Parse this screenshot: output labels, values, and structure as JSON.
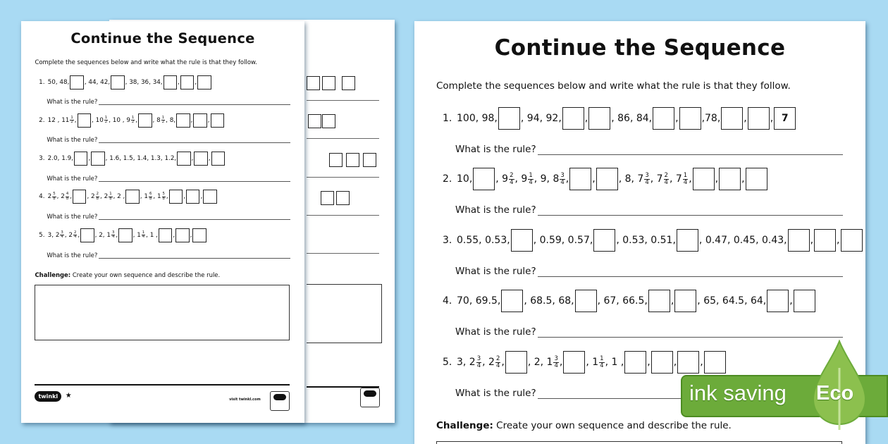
{
  "colors": {
    "background": "#a9daf3",
    "eco_green": "#6cab3a"
  },
  "left_sheet": {
    "title": "Continue the Sequence",
    "instructions": "Complete the sequences below and write what the rule is that they follow.",
    "rule_prompt": "What is the rule?",
    "challenge_label": "Challenge:",
    "challenge_text": "Create your own sequence and describe the rule.",
    "rows": [
      {
        "num": "1.",
        "tokens": [
          "50, 48,",
          {
            "box": ""
          },
          ", 44, 42,",
          {
            "box": ""
          },
          ", 38, 36, 34,",
          {
            "box": ""
          },
          ",",
          {
            "box": ""
          },
          ",",
          {
            "box": ""
          }
        ]
      },
      {
        "num": "2.",
        "tokens": [
          "12 , 11",
          {
            "n": "1",
            "d": "2"
          },
          ",",
          {
            "box": ""
          },
          ", 10",
          {
            "n": "1",
            "d": "2"
          },
          ", 10 , 9",
          {
            "n": "1",
            "d": "2"
          },
          ",",
          {
            "box": ""
          },
          ", 8",
          {
            "n": "1",
            "d": "2"
          },
          ", 8,",
          {
            "box": ""
          },
          ",",
          {
            "box": ""
          },
          ",",
          {
            "box": ""
          }
        ]
      },
      {
        "num": "3.",
        "tokens": [
          "2.0, 1.9,",
          {
            "box": ""
          },
          ",",
          {
            "box": ""
          },
          ", 1.6, 1.5, 1.4, 1.3, 1.2,",
          {
            "box": ""
          },
          ",",
          {
            "box": ""
          },
          ",",
          {
            "box": ""
          }
        ]
      },
      {
        "num": "4.",
        "tokens": [
          "2",
          {
            "n": "5",
            "d": "8"
          },
          ", 2",
          {
            "n": "4",
            "d": "8"
          },
          ",",
          {
            "box": ""
          },
          ", 2",
          {
            "n": "2",
            "d": "8"
          },
          ", 2",
          {
            "n": "1",
            "d": "8"
          },
          ", 2 ,",
          {
            "box": ""
          },
          ", 1",
          {
            "n": "6",
            "d": "8"
          },
          ", 1",
          {
            "n": "5",
            "d": "8"
          },
          ",",
          {
            "box": ""
          },
          ",",
          {
            "box": ""
          },
          ",",
          {
            "box": ""
          }
        ]
      },
      {
        "num": "5.",
        "tokens": [
          "3, 2",
          {
            "n": "3",
            "d": "4"
          },
          ", 2",
          {
            "n": "2",
            "d": "4"
          },
          ",",
          {
            "box": ""
          },
          ", 2, 1",
          {
            "n": "3",
            "d": "4"
          },
          ",",
          {
            "box": ""
          },
          ", 1",
          {
            "n": "1",
            "d": "4"
          },
          ", 1 ,",
          {
            "box": ""
          },
          ",",
          {
            "box": ""
          },
          ",",
          {
            "box": ""
          }
        ]
      }
    ]
  },
  "right_sheet": {
    "title": "Continue the Sequence",
    "instructions": "Complete the sequences below and write what the rule is that they follow.",
    "rule_prompt": "What is the rule?",
    "challenge_label": "Challenge:",
    "challenge_text": "Create your own sequence and describe the rule.",
    "rows": [
      {
        "num": "1.",
        "tokens": [
          "100, 98,",
          {
            "box": ""
          },
          ", 94, 92,",
          {
            "box": ""
          },
          ",",
          {
            "box": ""
          },
          ", 86, 84,",
          {
            "box": ""
          },
          ",",
          {
            "box": ""
          },
          ",78,",
          {
            "box": ""
          },
          ",",
          {
            "box": ""
          },
          ",",
          {
            "box": "7"
          }
        ]
      },
      {
        "num": "2.",
        "tokens": [
          "10,",
          {
            "box": ""
          },
          ", 9",
          {
            "n": "2",
            "d": "4"
          },
          ", 9",
          {
            "n": "1",
            "d": "4"
          },
          ", 9, 8",
          {
            "n": "3",
            "d": "4"
          },
          ",",
          {
            "box": ""
          },
          ",",
          {
            "box": ""
          },
          ", 8, 7",
          {
            "n": "3",
            "d": "4"
          },
          ", 7",
          {
            "n": "2",
            "d": "4"
          },
          ", 7",
          {
            "n": "1",
            "d": "4"
          },
          ",",
          {
            "box": ""
          },
          ",",
          {
            "box": ""
          },
          ",",
          {
            "box": ""
          }
        ]
      },
      {
        "num": "3.",
        "tokens": [
          "0.55, 0.53,",
          {
            "box": ""
          },
          ", 0.59, 0.57,",
          {
            "box": ""
          },
          ", 0.53, 0.51,",
          {
            "box": ""
          },
          ", 0.47, 0.45, 0.43,",
          {
            "box": ""
          },
          ",",
          {
            "box": ""
          },
          ",",
          {
            "box": ""
          }
        ]
      },
      {
        "num": "4.",
        "tokens": [
          "70, 69.5,",
          {
            "box": ""
          },
          ", 68.5, 68,",
          {
            "box": ""
          },
          ", 67, 66.5,",
          {
            "box": ""
          },
          ",",
          {
            "box": ""
          },
          ", 65, 64.5, 64,",
          {
            "box": ""
          },
          ",",
          {
            "box": ""
          }
        ]
      },
      {
        "num": "5.",
        "tokens": [
          "3, 2",
          {
            "n": "3",
            "d": "4"
          },
          ", 2",
          {
            "n": "2",
            "d": "4"
          },
          ",",
          {
            "box": ""
          },
          ", 2, 1",
          {
            "n": "3",
            "d": "4"
          },
          ",",
          {
            "box": ""
          },
          ", 1",
          {
            "n": "1",
            "d": "4"
          },
          ", 1 ,",
          {
            "box": ""
          },
          ",",
          {
            "box": ""
          },
          ",",
          {
            "box": ""
          },
          ",",
          {
            "box": ""
          }
        ]
      }
    ]
  },
  "footer": {
    "logo": "twinkl",
    "star": "★",
    "visit": "visit twinkl.com"
  },
  "eco_badge": {
    "label": "ink saving",
    "eco": "Eco"
  }
}
